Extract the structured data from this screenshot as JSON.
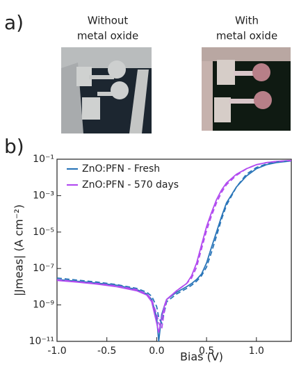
{
  "panel_a": {
    "label": "a)",
    "captions": [
      [
        "Without",
        "metal oxide"
      ],
      [
        "With",
        "metal oxide"
      ]
    ]
  },
  "chart_data": {
    "type": "line",
    "panel_label": "b)",
    "xlabel": "Bias (V)",
    "ylabel": "|Jmeas| (A cm⁻²)",
    "log_y": true,
    "grid": false,
    "legend": "upper left",
    "xlim": [
      -1.0,
      1.35
    ],
    "ylim": [
      1e-11,
      0.1
    ],
    "xticks": [
      {
        "value": -1.0,
        "label": "-1.0"
      },
      -0.5,
      {
        "value": 0,
        "label": "0.0"
      },
      0.5,
      {
        "value": 1.0,
        "label": "1.0"
      }
    ],
    "yticks": [
      {
        "value": 0.1,
        "label": "10⁻¹"
      },
      {
        "value": 0.001,
        "label": "10⁻³"
      },
      {
        "value": 1e-05,
        "label": "10⁻⁵"
      },
      {
        "value": 1e-07,
        "label": "10⁻⁷"
      },
      {
        "value": 1e-09,
        "label": "10⁻⁹"
      },
      {
        "value": 1e-11,
        "label": "10⁻¹¹"
      }
    ],
    "x": [
      -1.0,
      -0.8,
      -0.6,
      -0.4,
      -0.2,
      -0.1,
      -0.05,
      0,
      0.02,
      0.05,
      0.08,
      0.1,
      0.2,
      0.3,
      0.35,
      0.4,
      0.45,
      0.5,
      0.55,
      0.6,
      0.65,
      0.7,
      0.8,
      0.9,
      1.0,
      1.1,
      1.2,
      1.35
    ],
    "series": [
      {
        "name": "ZnO:PFN - Fresh",
        "color": "#2b76b9",
        "dash": false,
        "values": [
          2.5e-08,
          2e-08,
          1.6e-08,
          1.2e-08,
          7e-09,
          4e-09,
          2e-09,
          2e-10,
          1e-11,
          3e-10,
          1e-09,
          2e-09,
          5e-09,
          1e-08,
          1.5e-08,
          2.5e-08,
          5e-08,
          2e-07,
          1.5e-06,
          1e-05,
          7e-05,
          0.0004,
          0.003,
          0.012,
          0.03,
          0.05,
          0.065,
          0.08
        ]
      },
      {
        "name": "ZnO:PFN - 570 days",
        "color": "#b24cf0",
        "dash": false,
        "values": [
          2.2e-08,
          1.8e-08,
          1.4e-08,
          1e-08,
          6e-09,
          3.5e-09,
          1.5e-09,
          1e-10,
          3e-11,
          2e-10,
          1e-09,
          2e-09,
          6e-09,
          1.5e-08,
          4e-08,
          2e-07,
          2e-06,
          2e-05,
          0.00012,
          0.0006,
          0.002,
          0.005,
          0.015,
          0.03,
          0.05,
          0.065,
          0.075,
          0.085
        ]
      },
      {
        "color": "#2b76b9",
        "dash": true,
        "values": [
          3e-08,
          2.3e-08,
          1.8e-08,
          1.3e-08,
          8e-09,
          5e-09,
          3e-09,
          8e-10,
          2e-10,
          1e-10,
          5e-10,
          1.5e-09,
          4e-09,
          8e-09,
          1.2e-08,
          2e-08,
          4e-08,
          1.2e-07,
          8e-07,
          6e-06,
          5e-05,
          0.0003,
          0.003,
          0.015,
          0.035,
          0.055,
          0.07,
          0.08
        ]
      },
      {
        "color": "#b24cf0",
        "dash": true,
        "values": [
          2.4e-08,
          1.9e-08,
          1.5e-08,
          1.1e-08,
          7e-09,
          4e-09,
          2e-09,
          3e-10,
          1e-10,
          5e-11,
          6e-10,
          2e-09,
          6e-09,
          1.5e-08,
          3e-08,
          1.2e-07,
          1.2e-06,
          1.2e-05,
          8e-05,
          0.0004,
          0.0015,
          0.004,
          0.013,
          0.03,
          0.05,
          0.065,
          0.075,
          0.085
        ]
      }
    ]
  }
}
